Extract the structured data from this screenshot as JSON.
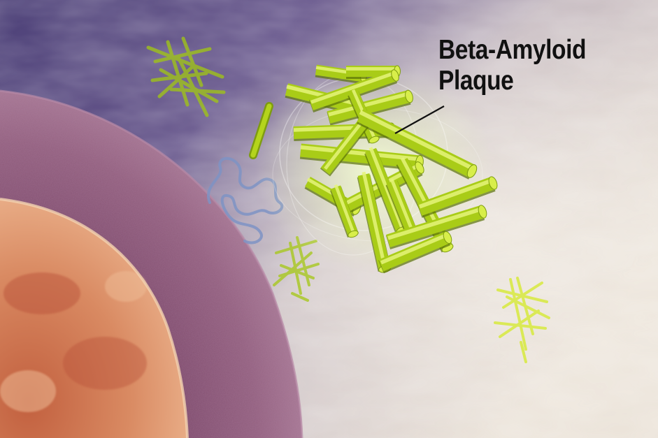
{
  "label": {
    "line1": "Beta-Amyloid",
    "line2": "Plaque"
  },
  "colors": {
    "background_light": "#e3dbd3",
    "background_purple": "#5a4c86",
    "membrane": "#8e5a80",
    "nucleus": "#d07a56",
    "fibril": "#b8d81c",
    "fibril_dark": "#7e9c10",
    "label_text": "#111111"
  }
}
